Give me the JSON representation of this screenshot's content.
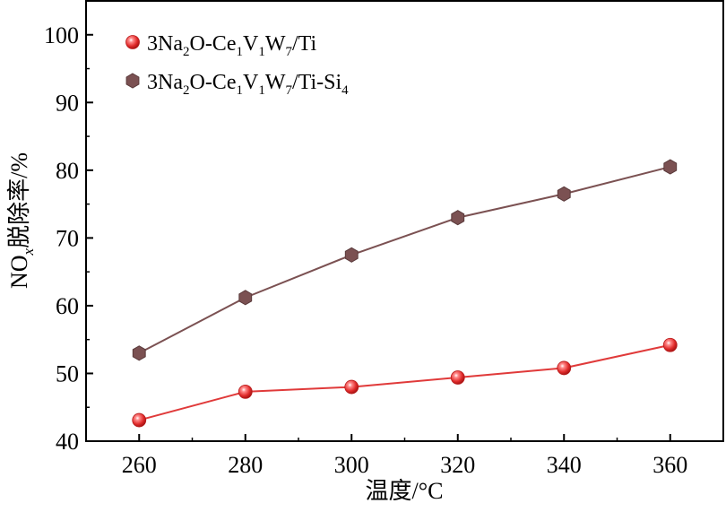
{
  "chart_data": {
    "type": "line",
    "x": [
      260,
      280,
      300,
      320,
      340,
      360
    ],
    "xlim": [
      250,
      370
    ],
    "ylim": [
      40,
      105
    ],
    "xticks": [
      260,
      280,
      300,
      320,
      340,
      360
    ],
    "yticks": [
      40,
      50,
      60,
      70,
      80,
      90,
      100
    ],
    "xlabel": "温度/°C",
    "ylabel": "NOx脱除率/%",
    "ylabel_parts": [
      "NO",
      "x",
      "脱除率/%"
    ],
    "grid": false,
    "legend_position": "top-left",
    "series": [
      {
        "name": "3Na2O-Ce1V1W7/Ti",
        "name_parts": [
          "3Na",
          "2",
          "O-Ce",
          "1",
          "V",
          "1",
          "W",
          "7",
          "/Ti"
        ],
        "values": [
          43.1,
          47.3,
          48.0,
          49.4,
          50.8,
          54.2
        ],
        "color": "#e03a3a",
        "marker": "sphere"
      },
      {
        "name": "3Na2O-Ce1V1W7/Ti-Si4",
        "name_parts": [
          "3Na",
          "2",
          "O-Ce",
          "1",
          "V",
          "1",
          "W",
          "7",
          "/Ti-Si",
          "4"
        ],
        "values": [
          53.0,
          61.2,
          67.5,
          73.0,
          76.5,
          80.5
        ],
        "color": "#7b5152",
        "marker": "hexagon"
      }
    ]
  }
}
